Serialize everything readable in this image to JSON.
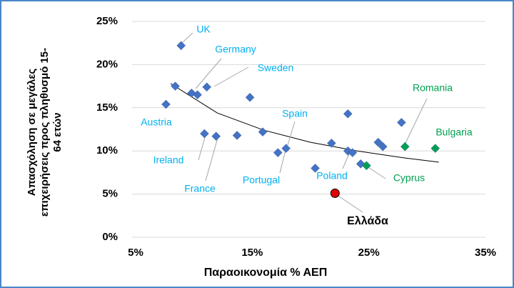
{
  "chart_data": {
    "type": "scatter",
    "xlabel": "Παραοικονομία % ΑΕΠ",
    "ylabel": [
      "Απασχόληση σε μεγάλες",
      "επιχειρήσεις προς πληθυσμό 15-",
      "64 ετών"
    ],
    "xlim": [
      5,
      35
    ],
    "xticks": [
      {
        "value": 5,
        "label": "5%"
      },
      {
        "value": 15,
        "label": "15%"
      },
      {
        "value": 25,
        "label": "25%"
      },
      {
        "value": 35,
        "label": "35%"
      }
    ],
    "ylim": [
      0,
      25
    ],
    "yticks": [
      {
        "value": 0,
        "label": "0%"
      },
      {
        "value": 5,
        "label": "5%"
      },
      {
        "value": 10,
        "label": "10%"
      },
      {
        "value": 15,
        "label": "15%"
      },
      {
        "value": 20,
        "label": "20%"
      },
      {
        "value": 25,
        "label": "25%"
      }
    ],
    "grid": true,
    "series": [
      {
        "color": "#4472c4",
        "marker": "diamond",
        "x": [
          8.9,
          8.4,
          7.6,
          9.8,
          10.3,
          11.1,
          14.8,
          10.9,
          11.9,
          13.7,
          15.9,
          17.2,
          17.9,
          20.4,
          21.8,
          23.2,
          23.2,
          23.6,
          24.3,
          25.8,
          26.2,
          27.8
        ],
        "values": [
          22.2,
          17.5,
          15.4,
          16.7,
          16.5,
          17.4,
          16.2,
          12.0,
          11.7,
          11.8,
          12.2,
          9.8,
          10.3,
          8.0,
          10.9,
          14.3,
          10.0,
          9.8,
          8.5,
          11.0,
          10.5,
          13.3
        ]
      },
      {
        "color": "#00a050",
        "marker": "diamond",
        "x": [
          24.8,
          28.1,
          30.7
        ],
        "values": [
          8.3,
          10.5,
          10.3
        ]
      },
      {
        "name": "Ελλάδα",
        "color": "#e00000",
        "marker": "circle",
        "x": [
          22.1
        ],
        "values": [
          5.1
        ]
      }
    ],
    "trendline": {
      "color": "#000000",
      "x": [
        8,
        12,
        16,
        20,
        24,
        28,
        31
      ],
      "values": [
        17.8,
        14.4,
        12.4,
        11.0,
        10.0,
        9.2,
        8.7
      ]
    },
    "annotations": [
      {
        "text": "UK",
        "color": "#00b0f0"
      },
      {
        "text": "Germany",
        "color": "#00b0f0"
      },
      {
        "text": "Sweden",
        "color": "#00b0f0"
      },
      {
        "text": "Austria",
        "color": "#00b0f0"
      },
      {
        "text": "Spain",
        "color": "#00b0f0"
      },
      {
        "text": "Romania",
        "color": "#00a050"
      },
      {
        "text": "Bulgaria",
        "color": "#00a050"
      },
      {
        "text": "Ireland",
        "color": "#00b0f0"
      },
      {
        "text": "France",
        "color": "#00b0f0"
      },
      {
        "text": "Portugal",
        "color": "#00b0f0"
      },
      {
        "text": "Poland",
        "color": "#00b0f0"
      },
      {
        "text": "Cyprus",
        "color": "#00a050"
      }
    ]
  }
}
